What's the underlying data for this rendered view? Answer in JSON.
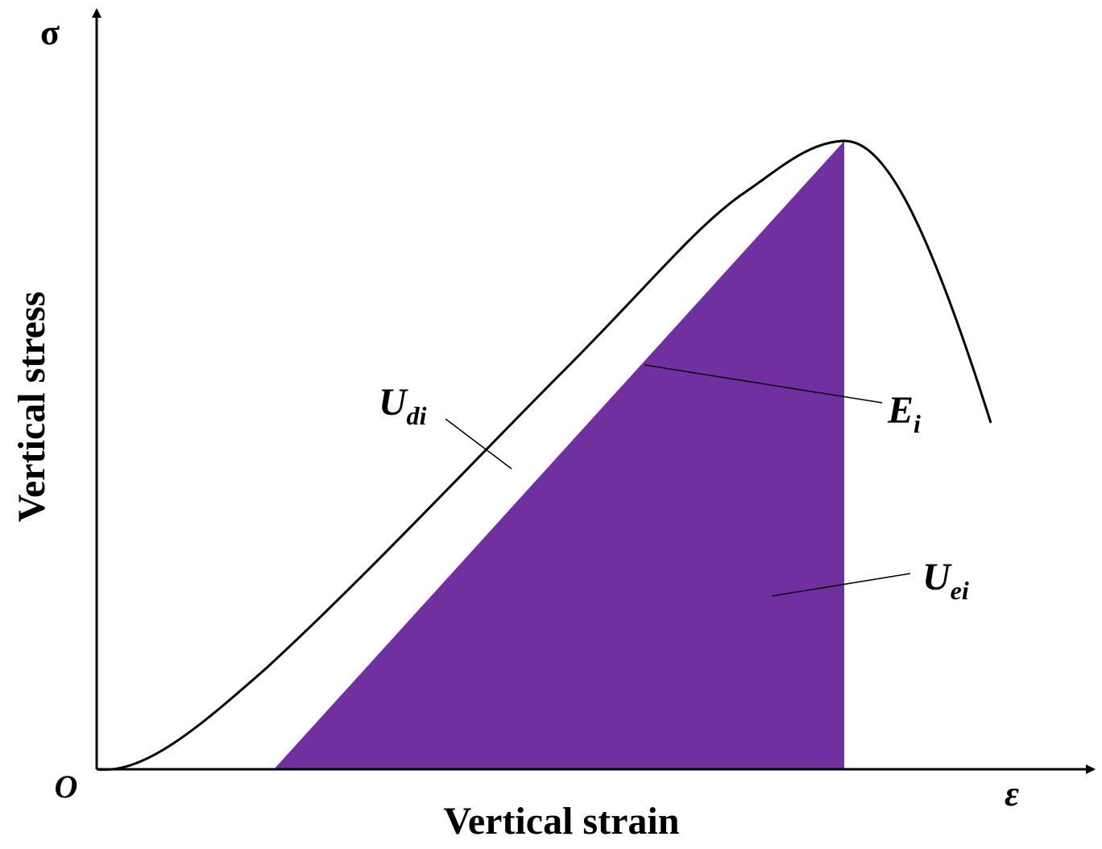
{
  "axes": {
    "y_symbol": "σ",
    "y_label": "Vertical stress",
    "origin": "O",
    "x_label": "Vertical strain",
    "x_symbol": "ε"
  },
  "labels": [
    {
      "main": "U",
      "sub": "di"
    },
    {
      "main": "E",
      "sub": "i"
    },
    {
      "main": "U",
      "sub": "ei"
    }
  ]
}
